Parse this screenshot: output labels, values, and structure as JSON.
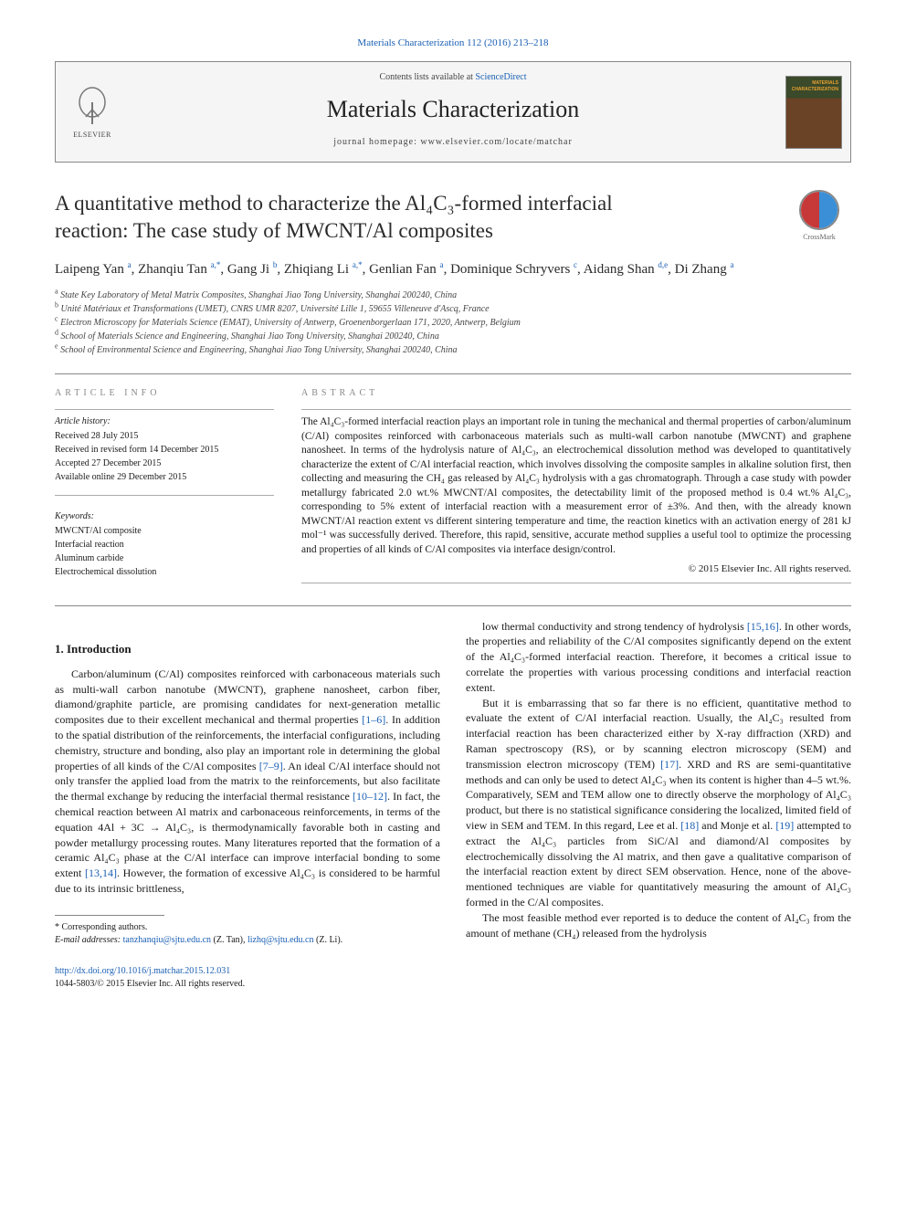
{
  "top_link": "Materials Characterization 112 (2016) 213–218",
  "header": {
    "contents_pre": "Contents lists available at ",
    "contents_link": "ScienceDirect",
    "journal_name": "Materials Characterization",
    "homepage": "journal homepage: www.elsevier.com/locate/matchar",
    "cover_label": "MATERIALS\nCHARACTERIZATION",
    "publisher": "ELSEVIER"
  },
  "title_line1": "A quantitative method to characterize the Al₄C₃-formed interfacial",
  "title_line2": "reaction: The case study of MWCNT/Al composites",
  "crossmark": "CrossMark",
  "authors_html": "Laipeng Yan <sup>a</sup>, Zhanqiu Tan <sup>a,*</sup>, Gang Ji <sup>b</sup>, Zhiqiang Li <sup>a,*</sup>, Genlian Fan <sup>a</sup>, Dominique Schryvers <sup>c</sup>, Aidang Shan <sup>d,e</sup>, Di Zhang <sup>a</sup>",
  "affiliations": [
    {
      "sup": "a",
      "text": "State Key Laboratory of Metal Matrix Composites, Shanghai Jiao Tong University, Shanghai 200240, China"
    },
    {
      "sup": "b",
      "text": "Unité Matériaux et Transformations (UMET), CNRS UMR 8207, Université Lille 1, 59655 Villeneuve d'Ascq, France"
    },
    {
      "sup": "c",
      "text": "Electron Microscopy for Materials Science (EMAT), University of Antwerp, Groenenborgerlaan 171, 2020, Antwerp, Belgium"
    },
    {
      "sup": "d",
      "text": "School of Materials Science and Engineering, Shanghai Jiao Tong University, Shanghai 200240, China"
    },
    {
      "sup": "e",
      "text": "School of Environmental Science and Engineering, Shanghai Jiao Tong University, Shanghai 200240, China"
    }
  ],
  "article_info": {
    "label": "ARTICLE INFO",
    "history_label": "Article history:",
    "history": [
      "Received 28 July 2015",
      "Received in revised form 14 December 2015",
      "Accepted 27 December 2015",
      "Available online 29 December 2015"
    ],
    "keywords_label": "Keywords:",
    "keywords": [
      "MWCNT/Al composite",
      "Interfacial reaction",
      "Aluminum carbide",
      "Electrochemical dissolution"
    ]
  },
  "abstract": {
    "label": "ABSTRACT",
    "text": "The Al₄C₃-formed interfacial reaction plays an important role in tuning the mechanical and thermal properties of carbon/aluminum (C/Al) composites reinforced with carbonaceous materials such as multi-wall carbon nanotube (MWCNT) and graphene nanosheet. In terms of the hydrolysis nature of Al₄C₃, an electrochemical dissolution method was developed to quantitatively characterize the extent of C/Al interfacial reaction, which involves dissolving the composite samples in alkaline solution first, then collecting and measuring the CH₄ gas released by Al₄C₃ hydrolysis with a gas chromatograph. Through a case study with powder metallurgy fabricated 2.0 wt.% MWCNT/Al composites, the detectability limit of the proposed method is 0.4 wt.% Al₄C₃, corresponding to 5% extent of interfacial reaction with a measurement error of ±3%. And then, with the already known MWCNT/Al reaction extent vs different sintering temperature and time, the reaction kinetics with an activation energy of 281 kJ mol⁻¹ was successfully derived. Therefore, this rapid, sensitive, accurate method supplies a useful tool to optimize the processing and properties of all kinds of C/Al composites via interface design/control.",
    "copyright": "© 2015 Elsevier Inc. All rights reserved."
  },
  "section_1": {
    "heading": "1. Introduction",
    "col1_p1": "Carbon/aluminum (C/Al) composites reinforced with carbonaceous materials such as multi-wall carbon nanotube (MWCNT), graphene nanosheet, carbon fiber, diamond/graphite particle, are promising candidates for next-generation metallic composites due to their excellent mechanical and thermal properties [1–6]. In addition to the spatial distribution of the reinforcements, the interfacial configurations, including chemistry, structure and bonding, also play an important role in determining the global properties of all kinds of the C/Al composites [7–9]. An ideal C/Al interface should not only transfer the applied load from the matrix to the reinforcements, but also facilitate the thermal exchange by reducing the interfacial thermal resistance [10–12]. In fact, the chemical reaction between Al matrix and carbonaceous reinforcements, in terms of the equation 4Al + 3C → Al₄C₃, is thermodynamically favorable both in casting and powder metallurgy processing routes. Many literatures reported that the formation of a ceramic Al₄C₃ phase at the C/Al interface can improve interfacial bonding to some extent [13,14]. However, the formation of excessive Al₄C₃ is considered to be harmful due to its intrinsic brittleness,",
    "col2_p1": "low thermal conductivity and strong tendency of hydrolysis [15,16]. In other words, the properties and reliability of the C/Al composites significantly depend on the extent of the Al₄C₃-formed interfacial reaction. Therefore, it becomes a critical issue to correlate the properties with various processing conditions and interfacial reaction extent.",
    "col2_p2": "But it is embarrassing that so far there is no efficient, quantitative method to evaluate the extent of C/Al interfacial reaction. Usually, the Al₄C₃ resulted from interfacial reaction has been characterized either by X-ray diffraction (XRD) and Raman spectroscopy (RS), or by scanning electron microscopy (SEM) and transmission electron microscopy (TEM) [17]. XRD and RS are semi-quantitative methods and can only be used to detect Al₄C₃ when its content is higher than 4–5 wt.%. Comparatively, SEM and TEM allow one to directly observe the morphology of Al₄C₃ product, but there is no statistical significance considering the localized, limited field of view in SEM and TEM. In this regard, Lee et al. [18] and Monje et al. [19] attempted to extract the Al₄C₃ particles from SiC/Al and diamond/Al composites by electrochemically dissolving the Al matrix, and then gave a qualitative comparison of the interfacial reaction extent by direct SEM observation. Hence, none of the above-mentioned techniques are viable for quantitatively measuring the amount of Al₄C₃ formed in the C/Al composites.",
    "col2_p3": "The most feasible method ever reported is to deduce the content of Al₄C₃ from the amount of methane (CH₄) released from the hydrolysis"
  },
  "footnotes": {
    "corr": "* Corresponding authors.",
    "emails_pre": "E-mail addresses: ",
    "email1": "tanzhanqiu@sjtu.edu.cn",
    "email1_name": " (Z. Tan), ",
    "email2": "lizhq@sjtu.edu.cn",
    "email2_name": " (Z. Li)."
  },
  "doi": {
    "link": "http://dx.doi.org/10.1016/j.matchar.2015.12.031",
    "copyright": "1044-5803/© 2015 Elsevier Inc. All rights reserved."
  },
  "colors": {
    "link": "#1a5fb4",
    "text": "#1a1a1a",
    "muted": "#888888"
  }
}
